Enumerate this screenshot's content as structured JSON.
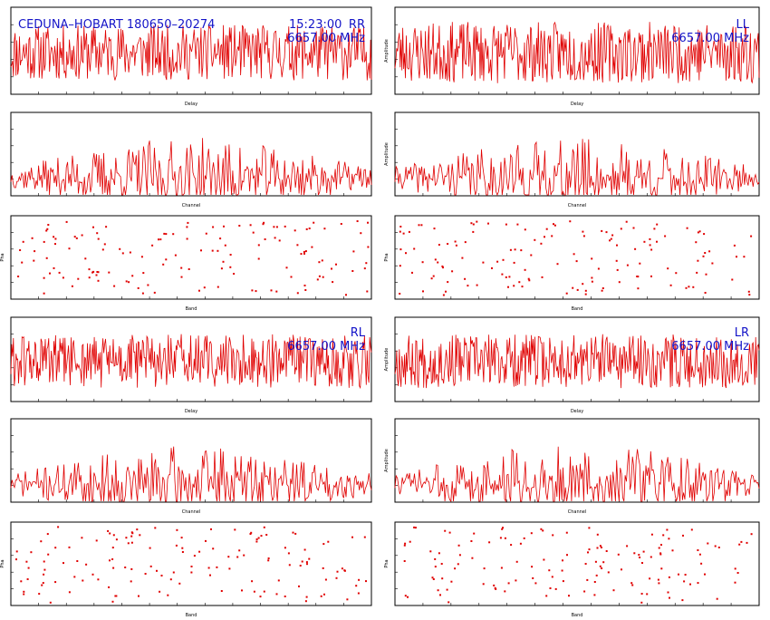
{
  "header": {
    "baseline": "CEDUNA–HOBART 180650–20274",
    "time": "15:23:00"
  },
  "colors": {
    "trace": "#e00000",
    "annotation": "#1414c8",
    "axes": "#000000"
  },
  "chart_data": [
    {
      "id": "rr-delay",
      "type": "line",
      "polarization": "RR",
      "freq": "6657.00 MHz",
      "xlabel": "Delay",
      "ylabel": "",
      "amp_scale": 1.0,
      "seed": 11
    },
    {
      "id": "ll-delay",
      "type": "line",
      "polarization": "LL",
      "freq": "6657.00 MHz",
      "xlabel": "Delay",
      "ylabel": "Amplitude",
      "amp_scale": 1.1,
      "seed": 23
    },
    {
      "id": "rr-channel",
      "type": "line",
      "xlabel": "Channel",
      "ylabel": "",
      "amp_scale": 1.0,
      "seed": 37
    },
    {
      "id": "ll-channel",
      "type": "line",
      "xlabel": "Channel",
      "ylabel": "Amplitude",
      "amp_scale": 1.0,
      "seed": 41
    },
    {
      "id": "rr-phase",
      "type": "scatter",
      "xlabel": "Band",
      "ylabel": "Pha",
      "seed": 53
    },
    {
      "id": "ll-phase",
      "type": "scatter",
      "xlabel": "Band",
      "ylabel": "Pha",
      "seed": 59
    },
    {
      "id": "rl-delay",
      "type": "line",
      "polarization": "RL",
      "freq": "6657.00 MHz",
      "xlabel": "Delay",
      "ylabel": "",
      "amp_scale": 1.0,
      "seed": 61
    },
    {
      "id": "lr-delay",
      "type": "line",
      "polarization": "LR",
      "freq": "6657.00 MHz",
      "xlabel": "Delay",
      "ylabel": "Amplitude",
      "amp_scale": 1.0,
      "seed": 67
    },
    {
      "id": "rl-channel",
      "type": "line",
      "xlabel": "Channel",
      "ylabel": "",
      "amp_scale": 1.0,
      "seed": 71
    },
    {
      "id": "lr-channel",
      "type": "line",
      "xlabel": "Channel",
      "ylabel": "Amplitude",
      "amp_scale": 1.0,
      "seed": 73
    },
    {
      "id": "rl-phase",
      "type": "scatter",
      "xlabel": "Band",
      "ylabel": "Pha",
      "seed": 79
    },
    {
      "id": "lr-phase",
      "type": "scatter",
      "xlabel": "Band",
      "ylabel": "Pha",
      "seed": 83
    }
  ]
}
